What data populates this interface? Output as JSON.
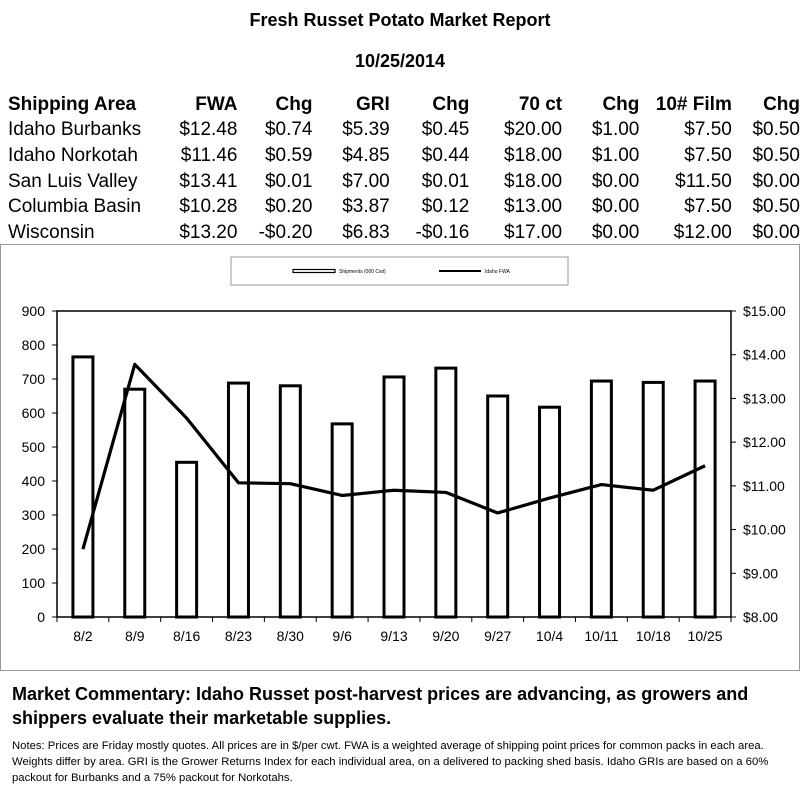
{
  "report": {
    "title": "Fresh Russet Potato Market Report",
    "date": "10/25/2014"
  },
  "table": {
    "headers": [
      "Shipping Area",
      "FWA",
      "Chg",
      "GRI",
      "Chg",
      "70 ct",
      "Chg",
      "10# Film",
      "Chg"
    ],
    "rows": [
      [
        "Idaho Burbanks",
        "$12.48",
        "$0.74",
        "$5.39",
        "$0.45",
        "$20.00",
        "$1.00",
        "$7.50",
        "$0.50"
      ],
      [
        "Idaho Norkotah",
        "$11.46",
        "$0.59",
        "$4.85",
        "$0.44",
        "$18.00",
        "$1.00",
        "$7.50",
        "$0.50"
      ],
      [
        "San Luis Valley",
        "$13.41",
        "$0.01",
        "$7.00",
        "$0.01",
        "$18.00",
        "$0.00",
        "$11.50",
        "$0.00"
      ],
      [
        "Columbia Basin",
        "$10.28",
        "$0.20",
        "$3.87",
        "$0.12",
        "$13.00",
        "$0.00",
        "$7.50",
        "$0.50"
      ],
      [
        "Wisconsin",
        "$13.20",
        "-$0.20",
        "$6.83",
        "-$0.16",
        "$17.00",
        "$0.00",
        "$12.00",
        "$0.00"
      ]
    ]
  },
  "chart_data": {
    "type": "bar",
    "categories": [
      "8/2",
      "8/9",
      "8/16",
      "8/23",
      "8/30",
      "9/6",
      "9/13",
      "9/20",
      "9/27",
      "10/4",
      "10/11",
      "10/18",
      "10/25"
    ],
    "series": [
      {
        "name": "Shipments (000 Cwt)",
        "type": "bar",
        "axis": "left",
        "values": [
          765,
          670,
          455,
          688,
          680,
          568,
          706,
          732,
          650,
          617,
          694,
          690,
          694
        ]
      },
      {
        "name": "Idaho FWA",
        "type": "line",
        "axis": "right",
        "values": [
          9.55,
          13.78,
          12.55,
          11.07,
          11.05,
          10.78,
          10.9,
          10.85,
          10.38,
          10.72,
          11.03,
          10.9,
          11.46
        ]
      }
    ],
    "y_left": {
      "min": 0,
      "max": 900,
      "ticks": [
        "0",
        "100",
        "200",
        "300",
        "400",
        "500",
        "600",
        "700",
        "800",
        "900"
      ]
    },
    "y_right": {
      "min": 8,
      "max": 15,
      "ticks": [
        "$8.00",
        "$9.00",
        "$10.00",
        "$11.00",
        "$12.00",
        "$13.00",
        "$14.00",
        "$15.00"
      ]
    },
    "legend_position": "top",
    "grid": false
  },
  "commentary": "Market Commentary: Idaho Russet post-harvest prices are advancing, as growers and shippers evaluate their marketable supplies.",
  "notes": "Notes: Prices are Friday mostly quotes. All prices are in $/per cwt. FWA is a weighted average of shipping point prices for  common packs in each area. Weights differ by area. GRI is the Grower Returns Index for each individual area, on a delivered to packing shed basis. Idaho GRIs are based on a 60% packout for Burbanks and a 75% packout for Norkotahs."
}
